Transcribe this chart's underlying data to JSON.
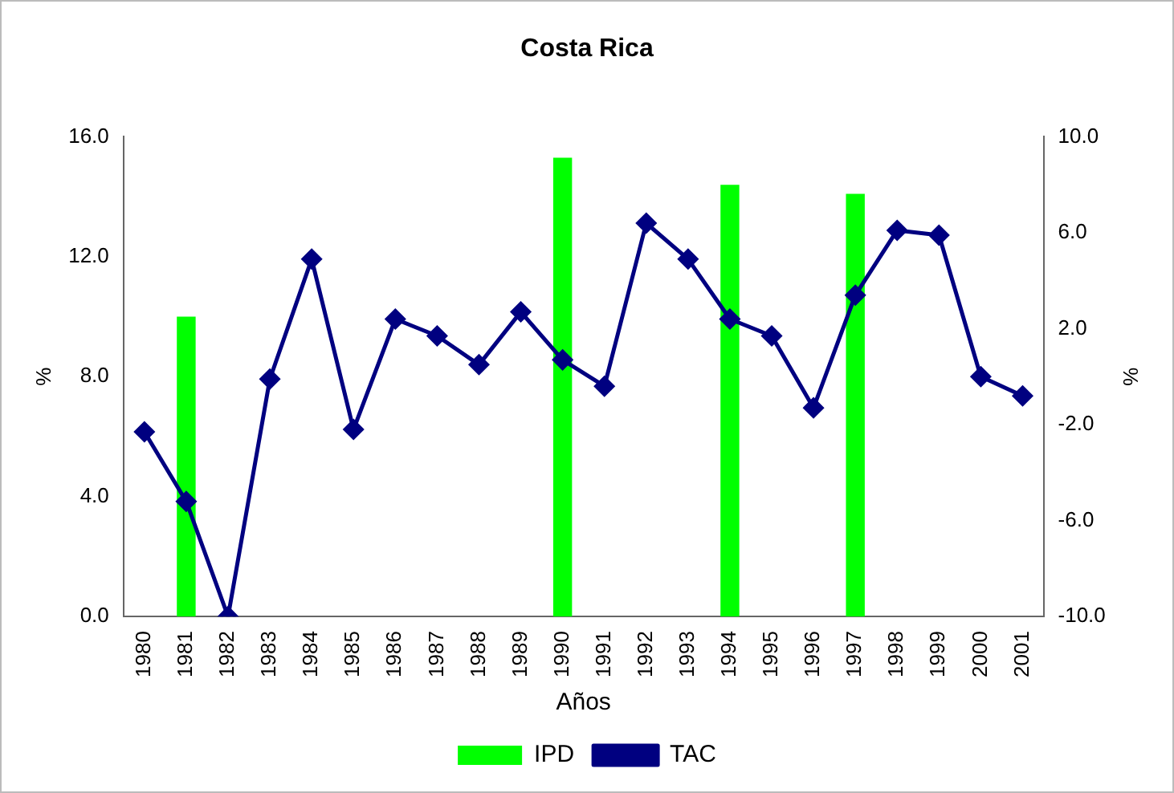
{
  "chart_data": {
    "type": "bar",
    "title": "Costa Rica",
    "xlabel": "Años",
    "ylabel": "%",
    "y2label": "%",
    "categories": [
      "1980",
      "1981",
      "1982",
      "1983",
      "1984",
      "1985",
      "1986",
      "1987",
      "1988",
      "1989",
      "1990",
      "1991",
      "1992",
      "1993",
      "1994",
      "1995",
      "1996",
      "1997",
      "1998",
      "1999",
      "2000",
      "2001"
    ],
    "series": [
      {
        "name": "IPD",
        "color": "#00ff00",
        "values": [
          null,
          10.0,
          null,
          null,
          null,
          null,
          null,
          null,
          null,
          null,
          15.3,
          null,
          null,
          null,
          14.4,
          null,
          null,
          14.1,
          null,
          null,
          null,
          null
        ]
      },
      {
        "name": "TAC",
        "type": "line",
        "axis": "y2",
        "color": "#000080",
        "marker": "diamond",
        "values": [
          -2.3,
          -5.2,
          -10.0,
          -0.1,
          4.9,
          -2.2,
          2.4,
          1.7,
          0.5,
          2.7,
          0.7,
          -0.4,
          6.4,
          4.9,
          2.4,
          1.7,
          -1.3,
          3.4,
          6.1,
          5.9,
          0.0,
          -0.8
        ]
      }
    ],
    "ylim": [
      0,
      16
    ],
    "yticks": [
      {
        "value": 0,
        "label": "0.0"
      },
      {
        "value": 4,
        "label": "4.0"
      },
      {
        "value": 8,
        "label": "8.0"
      },
      {
        "value": 12,
        "label": "12.0"
      },
      {
        "value": 16,
        "label": "16.0"
      }
    ],
    "y2lim": [
      -10,
      10
    ],
    "y2ticks": [
      {
        "value": -10,
        "label": "-10.0"
      },
      {
        "value": -6,
        "label": "-6.0"
      },
      {
        "value": -2,
        "label": "-2.0"
      },
      {
        "value": 2,
        "label": "2.0"
      },
      {
        "value": 6,
        "label": "6.0"
      },
      {
        "value": 10,
        "label": "10.0"
      }
    ],
    "grid": false,
    "legend": "bottom"
  }
}
